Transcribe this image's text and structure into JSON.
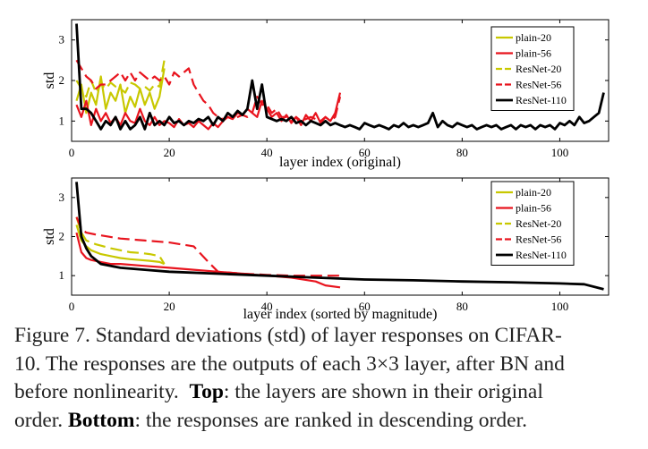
{
  "chart_data": [
    {
      "type": "line",
      "xlabel": "layer index (original)",
      "ylabel": "std",
      "xlim": [
        0,
        110
      ],
      "ylim": [
        0.5,
        3.5
      ],
      "xticks": [
        0,
        20,
        40,
        60,
        80,
        100
      ],
      "yticks": [
        1,
        2,
        3
      ],
      "legend": "top-right",
      "series": [
        {
          "name": "plain-20",
          "color": "#c8c800",
          "dash": "solid",
          "width": 2.2,
          "x": [
            1,
            2,
            3,
            4,
            5,
            6,
            7,
            8,
            9,
            10,
            11,
            12,
            13,
            14,
            15,
            16,
            17,
            18,
            19
          ],
          "y": [
            1.5,
            1.9,
            1.2,
            1.7,
            1.4,
            2.1,
            1.3,
            1.7,
            1.5,
            1.9,
            1.2,
            1.6,
            1.35,
            1.8,
            1.4,
            1.7,
            1.3,
            1.6,
            2.3
          ]
        },
        {
          "name": "plain-56",
          "color": "#e8141e",
          "dash": "solid",
          "width": 2.2,
          "x": [
            1,
            2,
            3,
            4,
            5,
            6,
            7,
            8,
            9,
            10,
            11,
            12,
            13,
            14,
            15,
            16,
            17,
            18,
            19,
            20,
            21,
            22,
            23,
            24,
            25,
            26,
            27,
            28,
            29,
            30,
            31,
            32,
            33,
            34,
            35,
            36,
            37,
            38,
            39,
            40,
            41,
            42,
            43,
            44,
            45,
            46,
            47,
            48,
            49,
            50,
            51,
            52,
            53,
            54,
            55
          ],
          "y": [
            1.4,
            1.1,
            1.5,
            0.9,
            1.3,
            1.0,
            1.2,
            0.95,
            1.1,
            0.9,
            1.2,
            1.0,
            0.95,
            1.3,
            1.0,
            0.9,
            1.1,
            0.9,
            1.0,
            0.95,
            0.85,
            1.05,
            0.9,
            0.95,
            0.85,
            1.0,
            0.9,
            0.8,
            0.95,
            0.85,
            1.0,
            1.1,
            1.05,
            1.2,
            1.15,
            1.3,
            1.2,
            1.1,
            1.5,
            1.3,
            1.1,
            1.2,
            1.0,
            1.15,
            0.95,
            1.1,
            0.9,
            1.15,
            1.0,
            1.2,
            0.95,
            1.1,
            1.0,
            1.2,
            1.7
          ]
        },
        {
          "name": "ResNet-20",
          "color": "#c8c800",
          "dash": "dashed",
          "width": 2.2,
          "x": [
            1,
            2,
            3,
            4,
            5,
            6,
            7,
            8,
            9,
            10,
            11,
            12,
            13,
            14,
            15,
            16,
            17,
            18,
            19
          ],
          "y": [
            2.0,
            1.8,
            1.6,
            2.0,
            1.7,
            1.9,
            1.8,
            1.95,
            1.85,
            1.8,
            1.7,
            1.95,
            1.9,
            1.8,
            1.85,
            1.75,
            1.9,
            1.85,
            2.5
          ]
        },
        {
          "name": "ResNet-56",
          "color": "#e8141e",
          "dash": "dashed",
          "width": 2.2,
          "x": [
            1,
            2,
            3,
            4,
            5,
            6,
            7,
            8,
            9,
            10,
            11,
            12,
            13,
            14,
            15,
            16,
            17,
            18,
            19,
            20,
            21,
            22,
            23,
            24,
            25,
            26,
            27,
            28,
            29,
            30,
            31,
            32,
            33,
            34,
            35,
            36,
            37,
            38,
            39,
            40,
            41,
            42,
            43,
            44,
            45,
            46,
            47,
            48,
            49,
            50,
            51,
            52,
            53,
            54,
            55
          ],
          "y": [
            2.5,
            2.3,
            2.1,
            2.0,
            1.8,
            1.9,
            1.9,
            2.0,
            2.1,
            2.2,
            2.0,
            2.2,
            2.0,
            2.2,
            2.1,
            2.0,
            2.1,
            2.0,
            2.1,
            1.9,
            2.2,
            2.1,
            2.2,
            2.3,
            1.9,
            1.7,
            1.5,
            1.4,
            1.2,
            1.1,
            1.05,
            1.1,
            1.05,
            1.1,
            1.15,
            1.1,
            1.2,
            1.6,
            1.4,
            1.4,
            1.2,
            1.3,
            1.1,
            1.1,
            1.0,
            1.1,
            1.0,
            1.05,
            1.1,
            1.05,
            1.0,
            1.1,
            1.0,
            1.1,
            1.6
          ]
        },
        {
          "name": "ResNet-110",
          "color": "#000000",
          "dash": "solid",
          "width": 2.8,
          "x": [
            1,
            2,
            3,
            4,
            5,
            6,
            7,
            8,
            9,
            10,
            11,
            12,
            13,
            14,
            15,
            16,
            17,
            18,
            19,
            20,
            21,
            22,
            23,
            24,
            25,
            26,
            27,
            28,
            29,
            30,
            31,
            32,
            33,
            34,
            35,
            36,
            37,
            38,
            39,
            40,
            41,
            42,
            43,
            44,
            45,
            46,
            47,
            48,
            49,
            50,
            51,
            52,
            53,
            54,
            55,
            56,
            57,
            58,
            59,
            60,
            61,
            62,
            63,
            64,
            65,
            66,
            67,
            68,
            69,
            70,
            71,
            72,
            73,
            74,
            75,
            76,
            77,
            78,
            79,
            80,
            81,
            82,
            83,
            84,
            85,
            86,
            87,
            88,
            89,
            90,
            91,
            92,
            93,
            94,
            95,
            96,
            97,
            98,
            99,
            100,
            101,
            102,
            103,
            104,
            105,
            106,
            107,
            108,
            109
          ],
          "y": [
            3.4,
            1.3,
            1.3,
            1.2,
            1.0,
            0.8,
            1.0,
            0.9,
            1.1,
            0.8,
            1.0,
            0.8,
            0.9,
            1.1,
            0.8,
            1.2,
            0.9,
            1.0,
            0.9,
            1.1,
            0.95,
            1.0,
            0.9,
            1.0,
            0.95,
            1.05,
            1.0,
            1.1,
            0.9,
            1.1,
            1.0,
            1.2,
            1.1,
            1.25,
            1.15,
            1.3,
            2.0,
            1.3,
            1.9,
            1.1,
            1.05,
            1.0,
            1.05,
            1.0,
            1.1,
            0.95,
            1.0,
            0.9,
            1.0,
            0.95,
            0.9,
            1.0,
            0.9,
            0.95,
            0.9,
            0.85,
            0.9,
            0.85,
            0.8,
            0.95,
            0.9,
            0.85,
            0.9,
            0.85,
            0.8,
            0.9,
            0.85,
            0.95,
            0.85,
            0.9,
            0.85,
            0.9,
            0.95,
            1.2,
            0.85,
            1.0,
            0.9,
            0.85,
            0.95,
            0.9,
            0.85,
            0.9,
            0.8,
            0.85,
            0.9,
            0.85,
            0.9,
            0.8,
            0.85,
            0.9,
            0.8,
            0.9,
            0.85,
            0.9,
            0.8,
            0.9,
            0.85,
            0.9,
            0.8,
            0.95,
            0.9,
            1.0,
            0.9,
            1.1,
            0.95,
            1.0,
            1.1,
            1.2,
            1.7
          ]
        }
      ]
    },
    {
      "type": "line",
      "xlabel": "layer index (sorted by magnitude)",
      "ylabel": "std",
      "xlim": [
        0,
        110
      ],
      "ylim": [
        0.5,
        3.5
      ],
      "xticks": [
        0,
        20,
        40,
        60,
        80,
        100
      ],
      "yticks": [
        1,
        2,
        3
      ],
      "legend": "top-right",
      "series": [
        {
          "name": "plain-20",
          "color": "#c8c800",
          "dash": "solid",
          "width": 2.2,
          "x": [
            1,
            2,
            3,
            4,
            6,
            8,
            10,
            12,
            14,
            16,
            18,
            19
          ],
          "y": [
            2.3,
            1.9,
            1.75,
            1.65,
            1.55,
            1.5,
            1.45,
            1.42,
            1.4,
            1.38,
            1.35,
            1.3
          ]
        },
        {
          "name": "plain-56",
          "color": "#e8141e",
          "dash": "solid",
          "width": 2.2,
          "x": [
            1,
            2,
            3,
            4,
            6,
            8,
            10,
            15,
            20,
            25,
            30,
            35,
            40,
            45,
            50,
            52,
            55
          ],
          "y": [
            2.1,
            1.6,
            1.45,
            1.4,
            1.35,
            1.3,
            1.3,
            1.25,
            1.2,
            1.15,
            1.1,
            1.05,
            1.0,
            0.95,
            0.85,
            0.75,
            0.7
          ]
        },
        {
          "name": "ResNet-20",
          "color": "#c8c800",
          "dash": "dashed",
          "width": 2.2,
          "x": [
            1,
            2,
            3,
            5,
            8,
            10,
            12,
            14,
            16,
            18,
            19
          ],
          "y": [
            2.5,
            2.1,
            1.9,
            1.8,
            1.7,
            1.65,
            1.6,
            1.58,
            1.55,
            1.5,
            1.3
          ]
        },
        {
          "name": "ResNet-56",
          "color": "#e8141e",
          "dash": "dashed",
          "width": 2.2,
          "x": [
            1,
            2,
            3,
            5,
            10,
            15,
            20,
            25,
            28,
            30,
            35,
            40,
            45,
            50,
            55
          ],
          "y": [
            2.5,
            2.2,
            2.1,
            2.05,
            1.95,
            1.9,
            1.85,
            1.75,
            1.35,
            1.1,
            1.05,
            1.02,
            1.0,
            1.0,
            1.0
          ]
        },
        {
          "name": "ResNet-110",
          "color": "#000000",
          "dash": "solid",
          "width": 2.8,
          "x": [
            1,
            2,
            3,
            4,
            6,
            8,
            10,
            15,
            20,
            30,
            40,
            50,
            60,
            70,
            80,
            90,
            100,
            105,
            109
          ],
          "y": [
            3.4,
            2.0,
            1.7,
            1.5,
            1.3,
            1.25,
            1.2,
            1.15,
            1.1,
            1.05,
            1.0,
            0.95,
            0.9,
            0.88,
            0.85,
            0.83,
            0.8,
            0.78,
            0.65
          ]
        }
      ]
    }
  ],
  "caption": {
    "line1": "Figure 7. Standard deviations (std) of layer responses on CIFAR-",
    "line2": "10. The responses are the outputs of each 3×3 layer, after BN and",
    "line3a": "before nonlinearity.",
    "top_label": "Top",
    "line3b": ": the layers are shown in their original",
    "line4a": "order.",
    "bottom_label": "Bottom",
    "line4b": ": the responses are ranked in descending order."
  }
}
